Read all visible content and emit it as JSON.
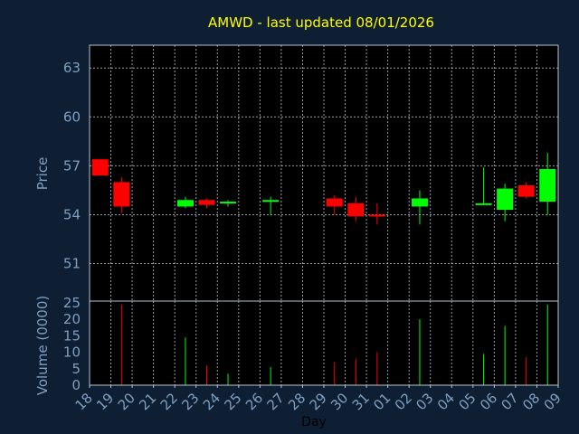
{
  "chart_data": {
    "type": "candlestick",
    "title": "AMWD - last updated 08/01/2026",
    "xlabel": "Day",
    "ylabel_price": "Price",
    "ylabel_volume": "Volume (0000)",
    "x_ticks": [
      "18",
      "19",
      "20",
      "21",
      "22",
      "23",
      "24",
      "25",
      "26",
      "27",
      "28",
      "29",
      "30",
      "31",
      "01",
      "02",
      "03",
      "04",
      "05",
      "06",
      "07",
      "08",
      "09"
    ],
    "price_ticks": [
      51,
      54,
      57,
      60,
      63
    ],
    "price_ylim": [
      48.7,
      64.4
    ],
    "volume_ticks": [
      0,
      5,
      10,
      15,
      20,
      25
    ],
    "volume_ylim": [
      0,
      25
    ],
    "colors": {
      "up": "#00ff00",
      "down": "#ff0000",
      "title": "#ffff00",
      "tick": "#7f9fc0",
      "background": "#0f1f33",
      "plot_background": "#000000"
    },
    "candles": [
      {
        "day": "18",
        "open": 57.4,
        "high": 57.4,
        "low": 56.4,
        "close": 56.4,
        "volume": 0
      },
      {
        "day": "19",
        "open": 56.0,
        "high": 56.3,
        "low": 54.1,
        "close": 54.5,
        "volume": 24.5
      },
      {
        "day": "22",
        "open": 54.5,
        "high": 55.1,
        "low": 54.4,
        "close": 54.9,
        "volume": 14.5
      },
      {
        "day": "23",
        "open": 54.9,
        "high": 55.0,
        "low": 54.4,
        "close": 54.6,
        "volume": 6.0
      },
      {
        "day": "24",
        "open": 54.7,
        "high": 54.9,
        "low": 54.5,
        "close": 54.8,
        "volume": 3.5
      },
      {
        "day": "26",
        "open": 54.8,
        "high": 55.1,
        "low": 54.0,
        "close": 54.9,
        "volume": 5.5
      },
      {
        "day": "29",
        "open": 55.0,
        "high": 55.2,
        "low": 54.0,
        "close": 54.5,
        "volume": 7.0
      },
      {
        "day": "30",
        "open": 54.7,
        "high": 55.1,
        "low": 53.6,
        "close": 53.9,
        "volume": 8.0
      },
      {
        "day": "31",
        "open": 54.0,
        "high": 54.7,
        "low": 53.4,
        "close": 53.9,
        "volume": 10.0
      },
      {
        "day": "02",
        "open": 54.5,
        "high": 55.5,
        "low": 53.4,
        "close": 55.0,
        "volume": 20.0
      },
      {
        "day": "05",
        "open": 54.6,
        "high": 56.9,
        "low": 54.6,
        "close": 54.7,
        "volume": 9.5
      },
      {
        "day": "06",
        "open": 54.3,
        "high": 55.9,
        "low": 53.6,
        "close": 55.6,
        "volume": 18.0
      },
      {
        "day": "07",
        "open": 55.8,
        "high": 56.0,
        "low": 55.0,
        "close": 55.1,
        "volume": 8.5
      },
      {
        "day": "08",
        "open": 54.8,
        "high": 57.8,
        "low": 54.0,
        "close": 56.8,
        "volume": 24.5
      }
    ]
  }
}
